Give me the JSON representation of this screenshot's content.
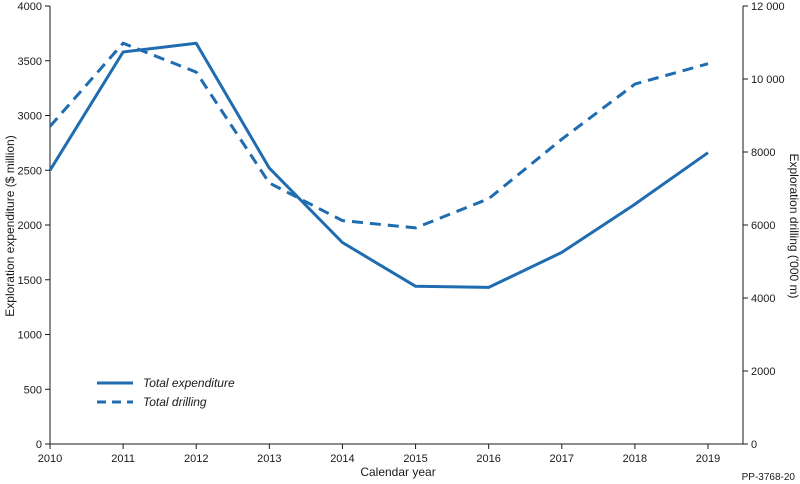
{
  "chart_data": {
    "type": "line",
    "x": [
      2010,
      2011,
      2012,
      2013,
      2014,
      2015,
      2016,
      2017,
      2018,
      2019
    ],
    "xlabel": "Calendar year",
    "ylabel": "Exploration expenditure ($ million)",
    "y2label": "Exploration drilling ('000 m)",
    "ylim": [
      0,
      4000
    ],
    "y2lim": [
      0,
      12000
    ],
    "yticks": [
      "0",
      "500",
      "1000",
      "1500",
      "2000",
      "2500",
      "3000",
      "3500",
      "4000"
    ],
    "y2ticks": [
      "0",
      "2000",
      "4000",
      "6000",
      "8000",
      "10 000",
      "12 000"
    ],
    "grid": false,
    "legend_position": "bottom-left",
    "series": [
      {
        "name": "Total expenditure",
        "axis": "left",
        "style": "solid",
        "color": "#1f6cb0",
        "values": [
          2500,
          3580,
          3660,
          2520,
          1840,
          1440,
          1430,
          1750,
          2190,
          2660
        ]
      },
      {
        "name": "Total drilling",
        "axis": "right",
        "style": "dashed",
        "color": "#1f6cb0",
        "values": [
          8700,
          10980,
          10190,
          7150,
          6120,
          5920,
          6720,
          8350,
          9860,
          10420
        ]
      }
    ],
    "reference": "PP-3768-20"
  }
}
